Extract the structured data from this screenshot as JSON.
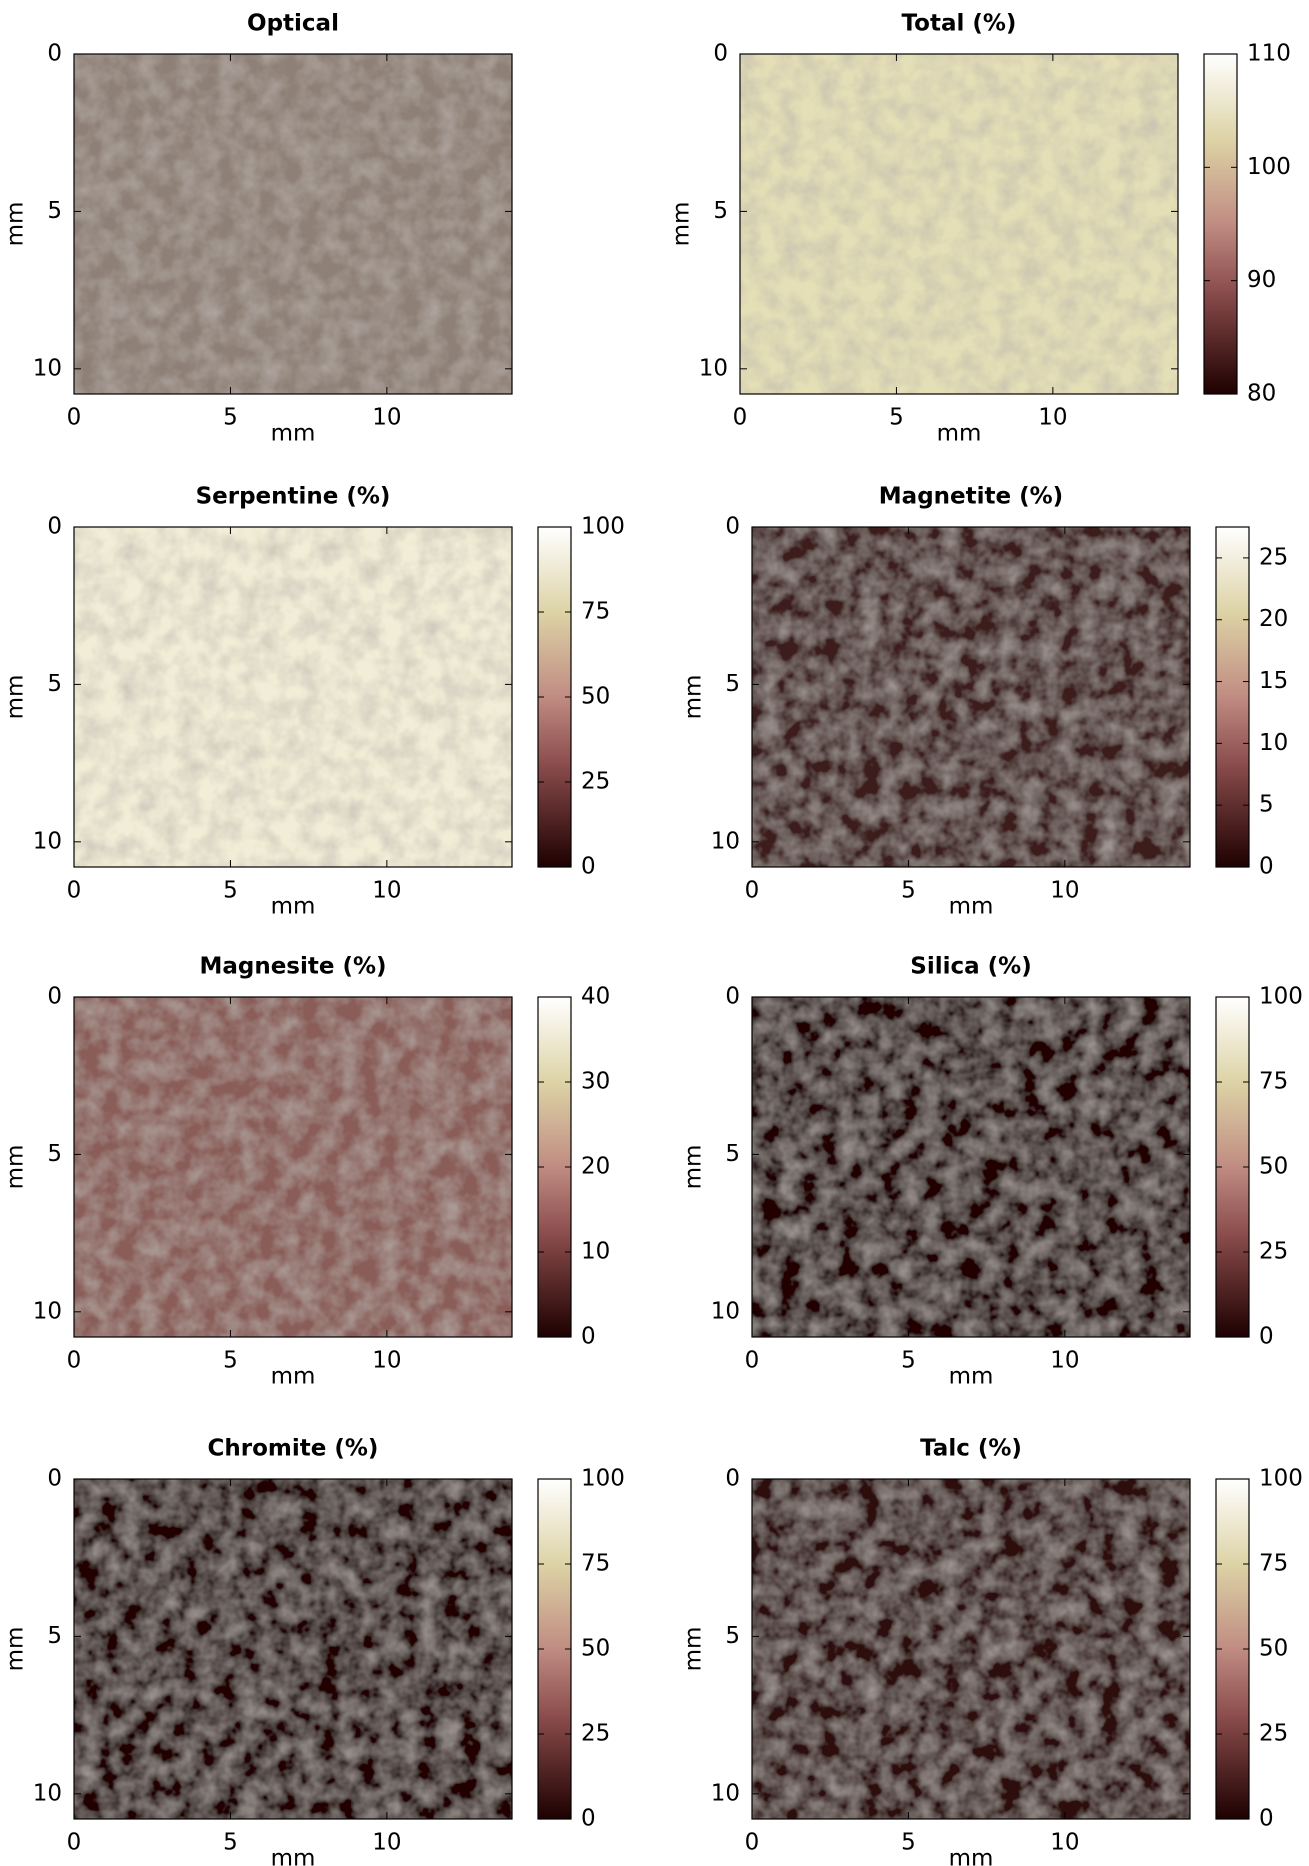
{
  "chart_data": [
    {
      "type": "image",
      "title": "Optical",
      "xlabel": "mm",
      "ylabel": "mm",
      "xlim": [
        0,
        14
      ],
      "ylim": [
        0,
        10.8
      ],
      "y_reversed": true,
      "xticks": [
        0,
        5,
        10
      ],
      "yticks": [
        0,
        5,
        10
      ],
      "color": "#8e8076"
    },
    {
      "type": "heatmap",
      "title": "Total  (%)",
      "xlabel": "mm",
      "ylabel": "mm",
      "xlim": [
        0,
        14
      ],
      "ylim": [
        0,
        10.8
      ],
      "y_reversed": true,
      "xticks": [
        0,
        5,
        10
      ],
      "yticks": [
        0,
        5,
        10
      ],
      "color": "#e4dfb6",
      "clim": [
        80,
        110
      ],
      "cticks": [
        80,
        90,
        100,
        110
      ]
    },
    {
      "type": "heatmap",
      "title": "Serpentine (%)",
      "xlabel": "mm",
      "ylabel": "mm",
      "xlim": [
        0,
        14
      ],
      "ylim": [
        0,
        10.8
      ],
      "y_reversed": true,
      "xticks": [
        0,
        5,
        10
      ],
      "yticks": [
        0,
        5,
        10
      ],
      "color": "#f1edd6",
      "clim": [
        0,
        100
      ],
      "cticks": [
        0,
        25,
        50,
        75,
        100
      ]
    },
    {
      "type": "heatmap",
      "title": "Magnetite (%)",
      "xlabel": "mm",
      "ylabel": "mm",
      "xlim": [
        0,
        14
      ],
      "ylim": [
        0,
        10.8
      ],
      "y_reversed": true,
      "xticks": [
        0,
        5,
        10
      ],
      "yticks": [
        0,
        5,
        10
      ],
      "color": "#3c1a1a",
      "clim": [
        0,
        27.5
      ],
      "cticks": [
        0,
        5,
        10,
        15,
        20,
        25
      ]
    },
    {
      "type": "heatmap",
      "title": "Magnesite (%)",
      "xlabel": "mm",
      "ylabel": "mm",
      "xlim": [
        0,
        14
      ],
      "ylim": [
        0,
        10.8
      ],
      "y_reversed": true,
      "xticks": [
        0,
        5,
        10
      ],
      "yticks": [
        0,
        5,
        10
      ],
      "color": "#8a5d58",
      "clim": [
        0,
        40
      ],
      "cticks": [
        0,
        10,
        20,
        30,
        40
      ]
    },
    {
      "type": "heatmap",
      "title": "Silica (%)",
      "xlabel": "mm",
      "ylabel": "mm",
      "xlim": [
        0,
        14
      ],
      "ylim": [
        0,
        10.8
      ],
      "y_reversed": true,
      "xticks": [
        0,
        5,
        10
      ],
      "yticks": [
        0,
        5,
        10
      ],
      "color": "#230606",
      "clim": [
        0,
        100
      ],
      "cticks": [
        0,
        25,
        50,
        75,
        100
      ]
    },
    {
      "type": "heatmap",
      "title": "Chromite (%)",
      "xlabel": "mm",
      "ylabel": "mm",
      "xlim": [
        0,
        14
      ],
      "ylim": [
        0,
        10.8
      ],
      "y_reversed": true,
      "xticks": [
        0,
        5,
        10
      ],
      "yticks": [
        0,
        5,
        10
      ],
      "color": "#220404",
      "clim": [
        0,
        100
      ],
      "cticks": [
        0,
        25,
        50,
        75,
        100
      ]
    },
    {
      "type": "heatmap",
      "title": "Talc (%)",
      "xlabel": "mm",
      "ylabel": "mm",
      "xlim": [
        0,
        14
      ],
      "ylim": [
        0,
        10.8
      ],
      "y_reversed": true,
      "xticks": [
        0,
        5,
        10
      ],
      "yticks": [
        0,
        5,
        10
      ],
      "color": "#2e0a0a",
      "clim": [
        0,
        100
      ],
      "cticks": [
        0,
        25,
        50,
        75,
        100
      ]
    }
  ]
}
